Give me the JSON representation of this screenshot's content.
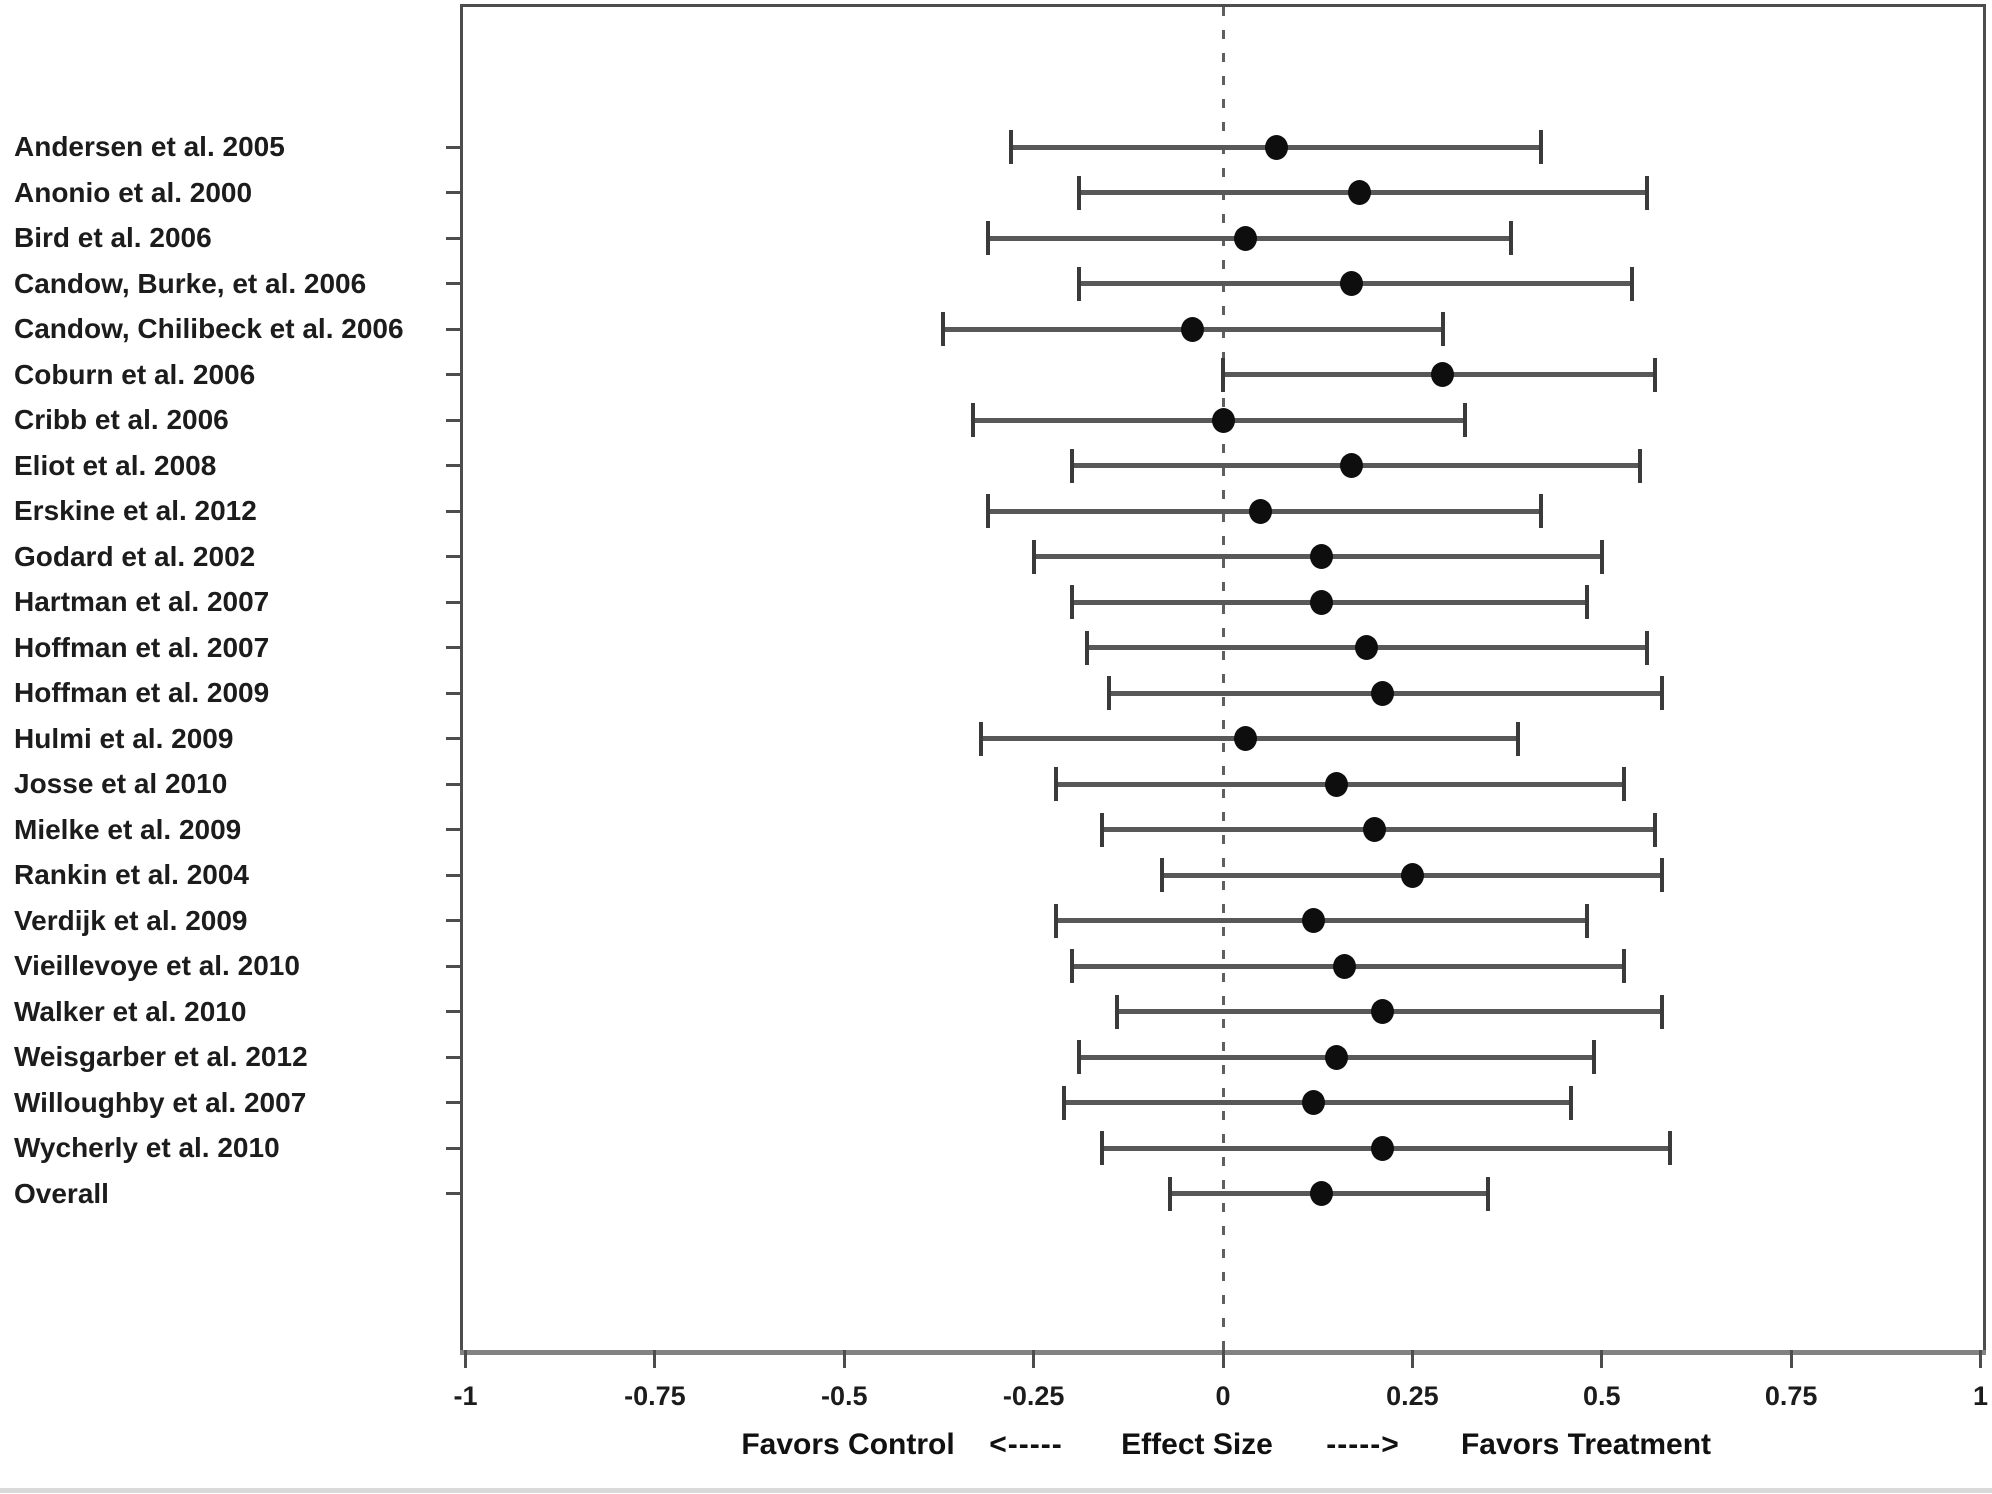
{
  "chart_data": {
    "type": "scatter",
    "subtype": "forest-plot",
    "title": "",
    "xlabel": "Effect Size",
    "x_axis": {
      "range": [
        -1,
        1
      ],
      "ticks": [
        -1,
        -0.75,
        -0.5,
        -0.25,
        0,
        0.25,
        0.5,
        0.75,
        1
      ],
      "tick_labels": [
        "-1",
        "-0.75",
        "-0.5",
        "-0.25",
        "0",
        "0.25",
        "0.5",
        "0.75",
        "1"
      ],
      "zero_reference_line": 0,
      "grid": false
    },
    "footer": {
      "favors_left": "Favors Control",
      "arrow_left": "<-----",
      "center": "Effect Size",
      "arrow_right": "----->",
      "favors_right": "Favors Treatment"
    },
    "studies": [
      {
        "label": "Andersen et al. 2005",
        "effect": 0.07,
        "ci_lower": -0.28,
        "ci_upper": 0.42
      },
      {
        "label": "Anonio et al. 2000",
        "effect": 0.18,
        "ci_lower": -0.19,
        "ci_upper": 0.56
      },
      {
        "label": "Bird et al. 2006",
        "effect": 0.03,
        "ci_lower": -0.31,
        "ci_upper": 0.38
      },
      {
        "label": "Candow, Burke, et al. 2006",
        "effect": 0.17,
        "ci_lower": -0.19,
        "ci_upper": 0.54
      },
      {
        "label": "Candow, Chilibeck et al. 2006",
        "effect": -0.04,
        "ci_lower": -0.37,
        "ci_upper": 0.29
      },
      {
        "label": "Coburn et al. 2006",
        "effect": 0.29,
        "ci_lower": 0.0,
        "ci_upper": 0.57
      },
      {
        "label": "Cribb et al. 2006",
        "effect": 0.0,
        "ci_lower": -0.33,
        "ci_upper": 0.32
      },
      {
        "label": "Eliot et al. 2008",
        "effect": 0.17,
        "ci_lower": -0.2,
        "ci_upper": 0.55
      },
      {
        "label": "Erskine et al. 2012",
        "effect": 0.05,
        "ci_lower": -0.31,
        "ci_upper": 0.42
      },
      {
        "label": "Godard et al. 2002",
        "effect": 0.13,
        "ci_lower": -0.25,
        "ci_upper": 0.5
      },
      {
        "label": "Hartman et al. 2007",
        "effect": 0.13,
        "ci_lower": -0.2,
        "ci_upper": 0.48
      },
      {
        "label": "Hoffman et al. 2007",
        "effect": 0.19,
        "ci_lower": -0.18,
        "ci_upper": 0.56
      },
      {
        "label": "Hoffman et al. 2009",
        "effect": 0.21,
        "ci_lower": -0.15,
        "ci_upper": 0.58
      },
      {
        "label": "Hulmi et al. 2009",
        "effect": 0.03,
        "ci_lower": -0.32,
        "ci_upper": 0.39
      },
      {
        "label": "Josse et al 2010",
        "effect": 0.15,
        "ci_lower": -0.22,
        "ci_upper": 0.53
      },
      {
        "label": "Mielke et al. 2009",
        "effect": 0.2,
        "ci_lower": -0.16,
        "ci_upper": 0.57
      },
      {
        "label": "Rankin et al. 2004",
        "effect": 0.25,
        "ci_lower": -0.08,
        "ci_upper": 0.58
      },
      {
        "label": "Verdijk et al. 2009",
        "effect": 0.12,
        "ci_lower": -0.22,
        "ci_upper": 0.48
      },
      {
        "label": "Vieillevoye et al. 2010",
        "effect": 0.16,
        "ci_lower": -0.2,
        "ci_upper": 0.53
      },
      {
        "label": "Walker et al. 2010",
        "effect": 0.21,
        "ci_lower": -0.14,
        "ci_upper": 0.58
      },
      {
        "label": "Weisgarber et al. 2012",
        "effect": 0.15,
        "ci_lower": -0.19,
        "ci_upper": 0.49
      },
      {
        "label": "Willoughby et al. 2007",
        "effect": 0.12,
        "ci_lower": -0.21,
        "ci_upper": 0.46
      },
      {
        "label": "Wycherly et al. 2010",
        "effect": 0.21,
        "ci_lower": -0.16,
        "ci_upper": 0.59
      },
      {
        "label": "Overall",
        "effect": 0.13,
        "ci_lower": -0.07,
        "ci_upper": 0.35
      }
    ]
  },
  "colors": {
    "background": "#ffffff",
    "box_border": "#4d4d4d",
    "axis_line": "#828282",
    "ci_line": "#585858",
    "marker": "#0e0e0e",
    "zero_line": "#5f5f5f",
    "text": "#1c1c1c"
  }
}
